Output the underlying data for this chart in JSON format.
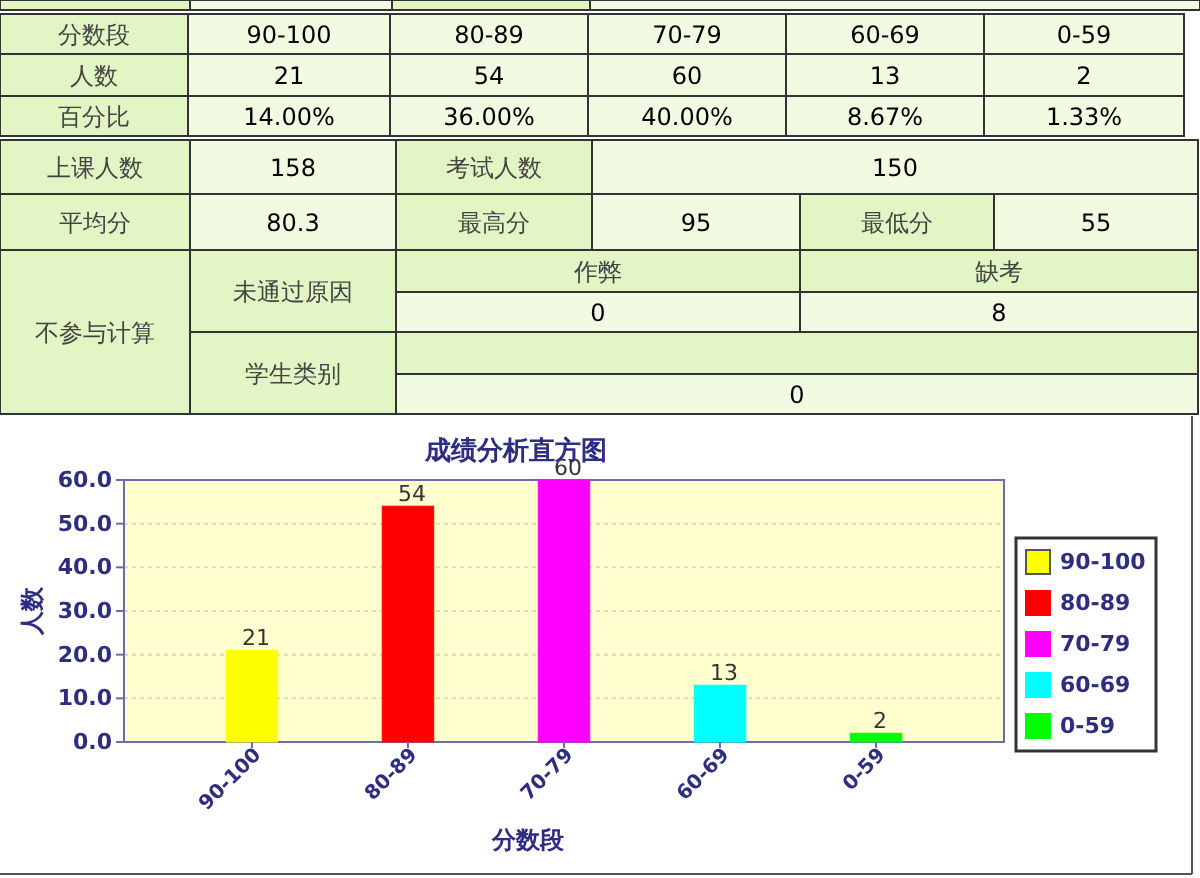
{
  "chart_data": [
    {
      "type": "other",
      "annotations": [
        "分数段",
        "90-100",
        "80-89",
        "70-79",
        "60-69",
        "0-59",
        "人数",
        "21",
        "54",
        "60",
        "13",
        "2",
        "百分比",
        "14.00%",
        "36.00%",
        "40.00%",
        "8.67%",
        "1.33%",
        "上课人数",
        "158",
        "考试人数",
        "150",
        "平均分",
        "80.3",
        "最高分",
        "95",
        "最低分",
        "55",
        "不参与计算",
        "未通过原因",
        "作弊",
        "缺考",
        "0",
        "8",
        "学生类别",
        "0"
      ]
    },
    {
      "type": "bar",
      "title": "成绩分析直方图",
      "xlabel": "分数段",
      "ylabel": "人数",
      "categories": [
        "90-100",
        "80-89",
        "70-79",
        "60-69",
        "0-59"
      ],
      "series": [
        {
          "name": "90-100",
          "color": "#ffff00",
          "values": [
            21,
            null,
            null,
            null,
            null
          ]
        },
        {
          "name": "80-89",
          "color": "#ff0000",
          "values": [
            null,
            54,
            null,
            null,
            null
          ]
        },
        {
          "name": "70-79",
          "color": "#ff00ff",
          "values": [
            null,
            null,
            60,
            null,
            null
          ]
        },
        {
          "name": "60-69",
          "color": "#00ffff",
          "values": [
            null,
            null,
            null,
            13,
            null
          ]
        },
        {
          "name": "0-59",
          "color": "#00ff00",
          "values": [
            null,
            null,
            null,
            null,
            2
          ]
        }
      ],
      "ylim": [
        0,
        60
      ],
      "yticks": [
        {
          "value": 0,
          "label": "0.0"
        },
        {
          "value": 10,
          "label": "10.0"
        },
        {
          "value": 20,
          "label": "20.0"
        },
        {
          "value": 30,
          "label": "30.0"
        },
        {
          "value": 40,
          "label": "40.0"
        },
        {
          "value": 50,
          "label": "50.0"
        },
        {
          "value": 60,
          "label": "60.0"
        }
      ],
      "grid": "y",
      "legend": "right",
      "data_labels": true
    }
  ]
}
